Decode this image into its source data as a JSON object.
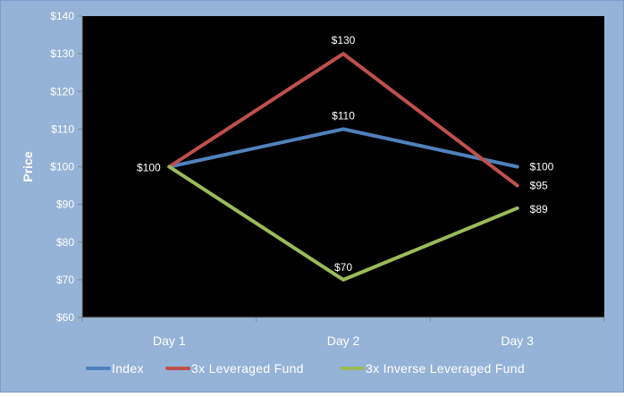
{
  "chart_data": {
    "type": "line",
    "title": "",
    "xlabel": "",
    "ylabel": "Price",
    "categories": [
      "Day 1",
      "Day 2",
      "Day 3"
    ],
    "ylim": [
      60,
      140
    ],
    "y_ticks": [
      60,
      70,
      80,
      90,
      100,
      110,
      120,
      130,
      140
    ],
    "y_tick_labels": [
      "$60",
      "$70",
      "$80",
      "$90",
      "$100",
      "$110",
      "$120",
      "$130",
      "$140"
    ],
    "legend_position": "bottom",
    "grid": false,
    "series": [
      {
        "name": "Index",
        "color": "#4f81bd",
        "values": [
          100,
          110,
          100
        ],
        "data_labels": [
          "$100",
          "$110",
          "$100"
        ]
      },
      {
        "name": "3x Leveraged Fund",
        "color": "#c0504d",
        "values": [
          100,
          130,
          95
        ],
        "data_labels": [
          "",
          "$130",
          "$95"
        ]
      },
      {
        "name": "3x Inverse Leveraged Fund",
        "color": "#9bbb59",
        "values": [
          100,
          70,
          89
        ],
        "data_labels": [
          "",
          "$70",
          "$89"
        ]
      }
    ]
  },
  "colors": {
    "chart_background": "#95b3d7",
    "plot_background": "#000000",
    "axis_text": "#ffffff",
    "data_label_text": "#ffffff",
    "axis_line": "#868686"
  }
}
